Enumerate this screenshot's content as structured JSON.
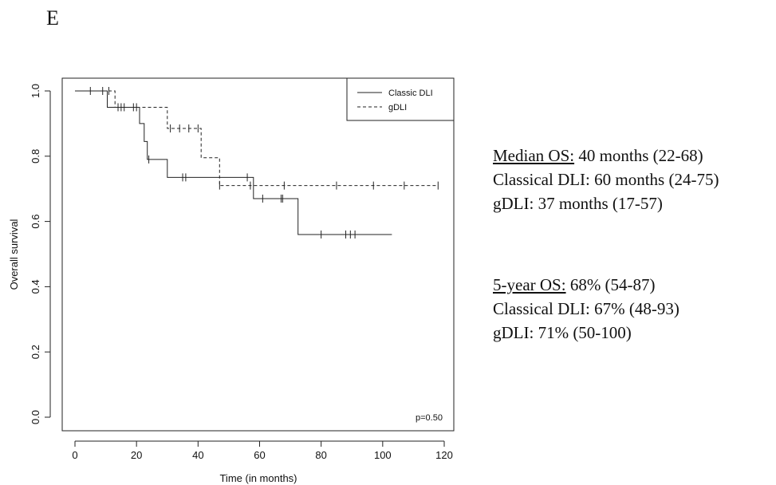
{
  "panel_label": "E",
  "chart_data": {
    "type": "line",
    "subtype": "kaplan-meier",
    "xlabel": "Time (in months)",
    "ylabel": "Overall survival",
    "xlim": [
      0,
      120
    ],
    "ylim": [
      0,
      1.0
    ],
    "xticks": [
      "0",
      "20",
      "40",
      "60",
      "80",
      "100",
      "120"
    ],
    "yticks": [
      "0.0",
      "0.2",
      "0.4",
      "0.6",
      "0.8",
      "1.0"
    ],
    "legend_position": "top-right",
    "annotation": "p=0.50",
    "series": [
      {
        "name": "Classic DLI",
        "style": "solid",
        "steps": [
          [
            0,
            1.0
          ],
          [
            10.5,
            1.0
          ],
          [
            10.5,
            0.95
          ],
          [
            21,
            0.95
          ],
          [
            21,
            0.9
          ],
          [
            22.5,
            0.9
          ],
          [
            22.5,
            0.845
          ],
          [
            23.5,
            0.845
          ],
          [
            23.5,
            0.79
          ],
          [
            30,
            0.79
          ],
          [
            30,
            0.735
          ],
          [
            58,
            0.735
          ],
          [
            58,
            0.67
          ],
          [
            72.5,
            0.67
          ],
          [
            72.5,
            0.56
          ],
          [
            103,
            0.56
          ]
        ],
        "censored": [
          [
            5,
            1.0
          ],
          [
            9,
            1.0
          ],
          [
            11,
            1.0
          ],
          [
            15,
            0.95
          ],
          [
            20,
            0.95
          ],
          [
            24,
            0.79
          ],
          [
            35,
            0.735
          ],
          [
            36,
            0.735
          ],
          [
            56,
            0.735
          ],
          [
            61,
            0.67
          ],
          [
            67,
            0.67
          ],
          [
            67.5,
            0.67
          ],
          [
            80,
            0.56
          ],
          [
            88,
            0.56
          ],
          [
            89.5,
            0.56
          ],
          [
            91,
            0.56
          ]
        ]
      },
      {
        "name": "gDLI",
        "style": "dashed",
        "steps": [
          [
            0,
            1.0
          ],
          [
            13,
            1.0
          ],
          [
            13,
            0.95
          ],
          [
            30,
            0.95
          ],
          [
            30,
            0.885
          ],
          [
            41,
            0.885
          ],
          [
            41,
            0.795
          ],
          [
            47,
            0.795
          ],
          [
            47,
            0.71
          ],
          [
            118,
            0.71
          ]
        ],
        "censored": [
          [
            14,
            0.95
          ],
          [
            16,
            0.95
          ],
          [
            19,
            0.95
          ],
          [
            31,
            0.885
          ],
          [
            34,
            0.885
          ],
          [
            37,
            0.885
          ],
          [
            40,
            0.885
          ],
          [
            47,
            0.71
          ],
          [
            57,
            0.71
          ],
          [
            68,
            0.71
          ],
          [
            85,
            0.71
          ],
          [
            97,
            0.71
          ],
          [
            107,
            0.71
          ],
          [
            118,
            0.71
          ]
        ]
      }
    ]
  },
  "stats": {
    "median": {
      "heading": "Median OS:",
      "overall": " 40 months (22-68)",
      "classical": "Classical DLI: 60 months (24-75)",
      "gdli": "gDLI: 37 months (17-57)"
    },
    "five_year": {
      "heading": "5-year OS:",
      "overall": " 68% (54-87)",
      "classical": "Classical DLI: 67% (48-93)",
      "gdli": "gDLI: 71% (50-100)"
    }
  }
}
